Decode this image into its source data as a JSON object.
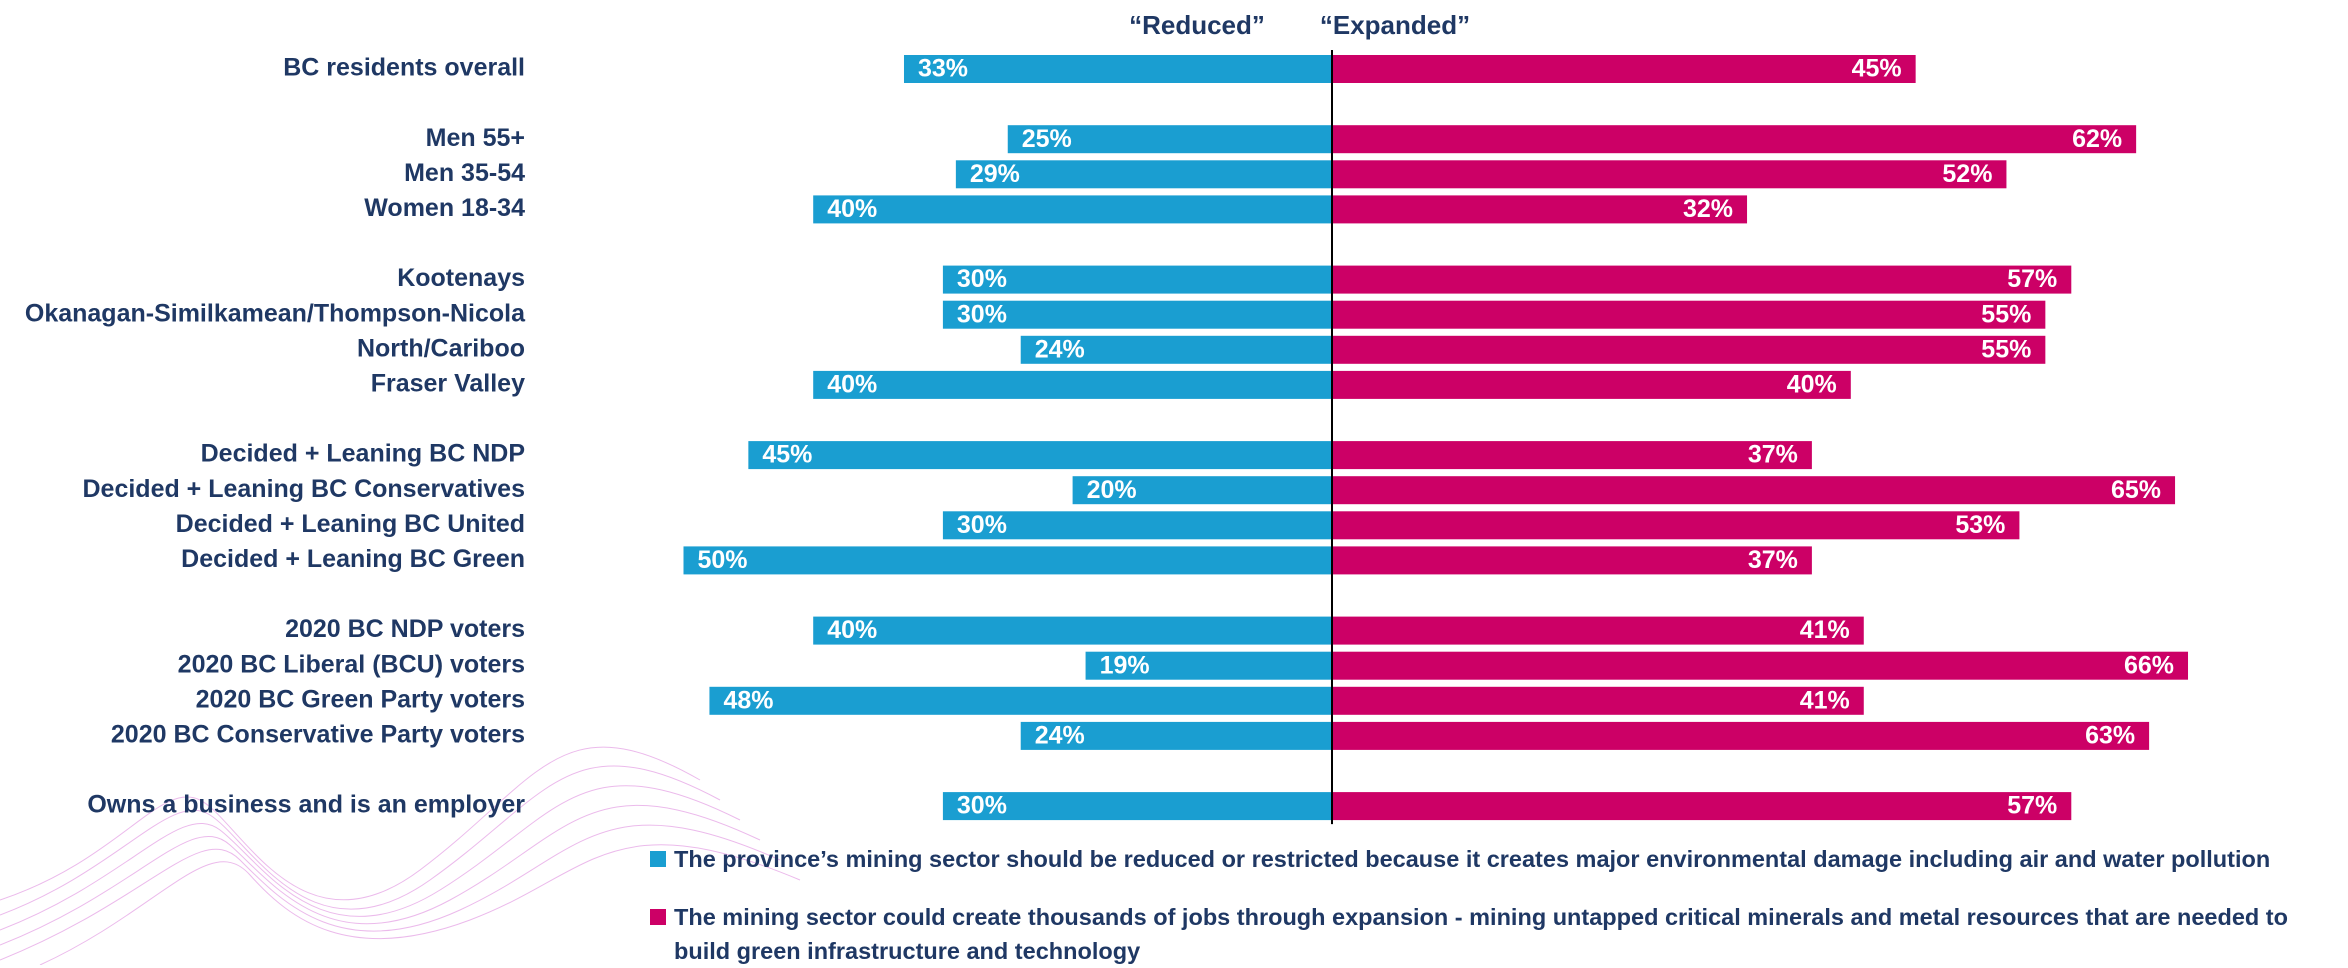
{
  "chart_data": {
    "type": "diverging-bar",
    "categories": [
      "BC residents overall",
      "Men 55+",
      "Men 35-54",
      "Women 18-34",
      "Kootenays",
      "Okanagan-Similkamean/Thompson-Nicola",
      "North/Cariboo",
      "Fraser Valley",
      "Decided + Leaning BC NDP",
      "Decided + Leaning BC Conservatives",
      "Decided + Leaning BC United",
      "Decided + Leaning BC Green",
      "2020 BC NDP voters",
      "2020 BC Liberal (BCU) voters",
      "2020 BC Green Party voters",
      "2020 BC Conservative Party voters",
      "Owns a business and is an employer"
    ],
    "series": [
      {
        "header": "“Reduced”",
        "name": "The province’s mining sector should be reduced or restricted because it creates major environmental damage including air and water pollution",
        "color": "#1a9ed1",
        "values": [
          33,
          25,
          29,
          40,
          30,
          30,
          24,
          40,
          45,
          20,
          30,
          50,
          40,
          19,
          48,
          24,
          30
        ],
        "value_labels": [
          "33%",
          "25%",
          "29%",
          "40%",
          "30%",
          "30%",
          "24%",
          "40%",
          "45%",
          "20%",
          "30%",
          "50%",
          "40%",
          "19%",
          "48%",
          "24%",
          "30%"
        ]
      },
      {
        "header": "“Expanded”",
        "name": "The mining sector could create thousands of jobs through expansion - mining untapped critical minerals and metal resources that are needed to build green infrastructure and technology",
        "color": "#cc0066",
        "values": [
          45,
          62,
          52,
          32,
          57,
          55,
          55,
          40,
          37,
          65,
          53,
          37,
          41,
          66,
          41,
          63,
          57
        ],
        "value_labels": [
          "45%",
          "62%",
          "52%",
          "32%",
          "57%",
          "55%",
          "55%",
          "40%",
          "37%",
          "65%",
          "53%",
          "37%",
          "41%",
          "66%",
          "41%",
          "63%",
          "57%"
        ]
      }
    ]
  }
}
